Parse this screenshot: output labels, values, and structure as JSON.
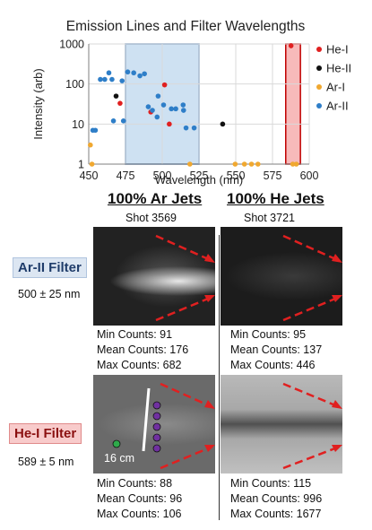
{
  "chart_data": {
    "type": "scatter",
    "title": "Emission Lines and Filter Wavelengths",
    "xlabel": "Wavelength (nm)",
    "ylabel": "Intensity (arb)",
    "xlim": [
      450,
      600
    ],
    "ylim": [
      1,
      1000
    ],
    "yscale": "log",
    "xticks": [
      "450",
      "475",
      "500",
      "525",
      "550",
      "575",
      "600"
    ],
    "yticks": [
      "1",
      "10",
      "100",
      "1000"
    ],
    "grid": true,
    "legend_position": "right",
    "filter_bands": [
      {
        "center": 500,
        "half_width": 25,
        "color": "#bdd7ee",
        "edge": "#4a7ebb"
      },
      {
        "center": 589,
        "half_width": 5,
        "color": "#f4a3a3",
        "edge": "#c00000"
      }
    ],
    "series": [
      {
        "name": "He-I",
        "color": "#e02020",
        "points": [
          [
            471.3,
            33
          ],
          [
            492.2,
            20
          ],
          [
            501.6,
            95
          ],
          [
            504.8,
            10
          ],
          [
            587.6,
            900
          ]
        ]
      },
      {
        "name": "He-II",
        "color": "#111111",
        "points": [
          [
            468.6,
            50
          ],
          [
            541.1,
            10
          ]
        ]
      },
      {
        "name": "Ar-I",
        "color": "#f0a830",
        "points": [
          [
            451.1,
            3
          ],
          [
            452.2,
            1
          ],
          [
            518.8,
            1
          ],
          [
            549.6,
            1
          ],
          [
            555.9,
            1
          ],
          [
            560.7,
            1
          ],
          [
            565.1,
            1
          ],
          [
            588.8,
            1
          ],
          [
            591.2,
            1
          ]
        ]
      },
      {
        "name": "Ar-II",
        "color": "#2e7ec8",
        "points": [
          [
            452.8,
            7
          ],
          [
            454.5,
            7
          ],
          [
            457.9,
            130
          ],
          [
            460.9,
            130
          ],
          [
            463.7,
            190
          ],
          [
            465.8,
            130
          ],
          [
            466.8,
            12
          ],
          [
            472.7,
            120
          ],
          [
            473.6,
            12
          ],
          [
            476.5,
            200
          ],
          [
            480.6,
            190
          ],
          [
            484.8,
            160
          ],
          [
            487.9,
            180
          ],
          [
            490.5,
            27
          ],
          [
            493.3,
            22
          ],
          [
            496.5,
            15
          ],
          [
            497.2,
            50
          ],
          [
            500.9,
            30
          ],
          [
            506.2,
            24
          ],
          [
            509.2,
            24
          ],
          [
            514.2,
            30
          ],
          [
            514.5,
            22
          ],
          [
            516.2,
            8
          ],
          [
            521.7,
            8
          ]
        ]
      }
    ]
  },
  "columns": [
    {
      "heading": "100% Ar Jets",
      "shot": "Shot 3569"
    },
    {
      "heading": "100% He Jets",
      "shot": "Shot 3721"
    }
  ],
  "filters": [
    {
      "label": "Ar-II Filter",
      "range": "500 ± 25 nm",
      "bg": "#dce6f2",
      "fg": "#1f3c6a",
      "border": "#b0c4de"
    },
    {
      "label": "He-I Filter",
      "range": "589 ± 5 nm",
      "bg": "#f8cbcb",
      "fg": "#8b1010",
      "border": "#e08a8a"
    }
  ],
  "counts": [
    [
      [
        "Min Counts: 91",
        "Mean Counts: 176",
        "Max Counts: 682"
      ],
      [
        "Min Counts: 95",
        "Mean Counts: 137",
        "Max Counts: 446"
      ]
    ],
    [
      [
        "Min Counts: 88",
        "Mean Counts: 96",
        "Max Counts: 106"
      ],
      [
        "Min Counts: 115",
        "Mean Counts: 996",
        "Max Counts: 1677"
      ]
    ]
  ],
  "scale_label": "16 cm"
}
